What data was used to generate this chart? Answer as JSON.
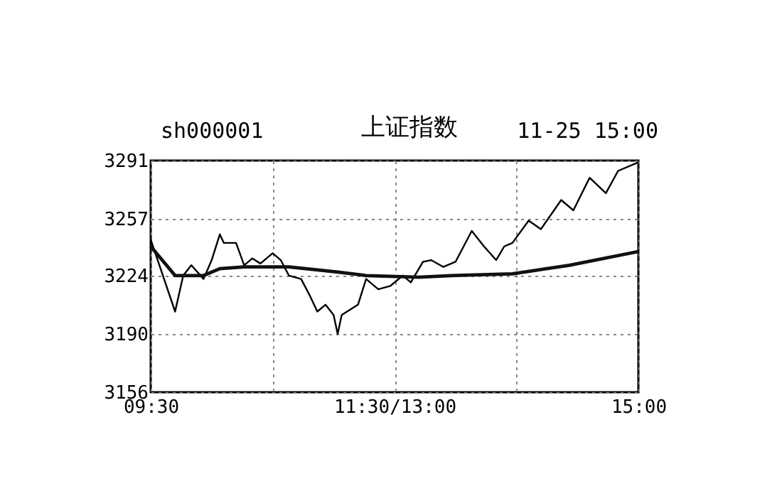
{
  "chart_data": {
    "type": "line",
    "title": "上证指数",
    "annotations": [
      "sh000001",
      "11-25 15:00"
    ],
    "categories": [
      "09:30",
      null,
      null,
      null,
      null,
      null,
      null,
      null,
      null,
      null,
      null,
      null,
      null,
      null,
      null,
      null,
      null,
      null,
      null,
      null,
      null,
      null,
      null,
      null,
      null,
      null,
      null,
      null,
      null,
      null,
      null,
      null,
      null,
      null,
      null,
      null,
      null,
      null,
      null,
      null,
      null,
      null,
      null,
      null,
      null,
      null,
      null,
      null,
      null,
      null,
      null,
      null,
      null,
      null,
      null,
      null,
      null,
      null,
      null,
      null,
      "11:30/13:00",
      null,
      null,
      null,
      null,
      null,
      null,
      null,
      null,
      null,
      null,
      null,
      null,
      null,
      null,
      null,
      null,
      null,
      null,
      null,
      null,
      null,
      null,
      null,
      null,
      null,
      null,
      null,
      null,
      null,
      null,
      null,
      null,
      null,
      null,
      null,
      null,
      null,
      null,
      null,
      null,
      null,
      null,
      null,
      null,
      null,
      null,
      null,
      null,
      null,
      null,
      null,
      null,
      null,
      null,
      null,
      null,
      null,
      null,
      null,
      "15:00"
    ],
    "series": [
      {
        "color": "#000000",
        "values": [
          3245,
          null,
          null,
          null,
          null,
          null,
          3203,
          null,
          3224,
          null,
          3230,
          null,
          null,
          3222,
          null,
          3233,
          null,
          3248,
          3243,
          null,
          null,
          3243,
          null,
          3230,
          null,
          3234,
          null,
          3231,
          null,
          null,
          3237,
          null,
          3233,
          null,
          3224,
          null,
          null,
          3222,
          null,
          3213,
          null,
          3203,
          null,
          3207,
          null,
          3201,
          3190,
          3201,
          null,
          null,
          null,
          3207,
          null,
          3222,
          null,
          null,
          3216,
          null,
          null,
          3218,
          null,
          null,
          3224,
          null,
          3220,
          null,
          3228,
          3232,
          null,
          3233,
          null,
          null,
          3229,
          null,
          null,
          3232,
          null,
          null,
          null,
          3250,
          null,
          null,
          3241,
          null,
          null,
          3233,
          null,
          3241,
          null,
          3243,
          null,
          null,
          null,
          3256,
          null,
          null,
          3251,
          null,
          null,
          null,
          null,
          3268,
          null,
          null,
          3262,
          null,
          null,
          null,
          3281,
          null,
          null,
          null,
          3272,
          null,
          null,
          3285,
          null,
          null,
          null,
          null,
          3290
        ]
      },
      {
        "color": "#111111",
        "values": [
          3241,
          null,
          null,
          null,
          null,
          null,
          3224,
          null,
          null,
          null,
          null,
          null,
          null,
          3224,
          null,
          null,
          null,
          3228,
          null,
          null,
          null,
          null,
          null,
          3229,
          null,
          null,
          null,
          null,
          null,
          null,
          null,
          null,
          null,
          null,
          3229,
          null,
          null,
          null,
          null,
          null,
          null,
          null,
          null,
          null,
          null,
          null,
          3226,
          null,
          null,
          null,
          null,
          null,
          null,
          3224,
          null,
          null,
          null,
          null,
          null,
          null,
          null,
          null,
          null,
          null,
          null,
          null,
          3223,
          null,
          null,
          null,
          null,
          null,
          null,
          null,
          3224,
          null,
          null,
          null,
          null,
          null,
          null,
          null,
          null,
          null,
          null,
          null,
          null,
          null,
          null,
          3225,
          null,
          null,
          null,
          null,
          null,
          null,
          null,
          null,
          null,
          null,
          null,
          null,
          null,
          3230,
          null,
          null,
          null,
          null,
          null,
          null,
          null,
          null,
          null,
          null,
          null,
          null,
          null,
          null,
          null,
          null,
          3238
        ]
      }
    ],
    "ylim": [
      3156,
      3291
    ],
    "yticks": [
      3156,
      3190,
      3224,
      3257,
      3291
    ],
    "grid": true
  }
}
